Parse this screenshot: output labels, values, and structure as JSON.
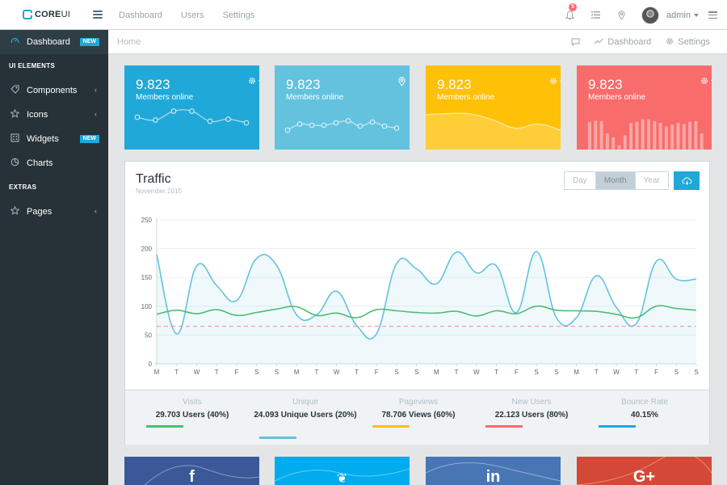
{
  "brand": {
    "name_bold": "CORE",
    "name_thin": "UI"
  },
  "header": {
    "nav": [
      "Dashboard",
      "Users",
      "Settings"
    ],
    "notifications_count": "5",
    "user_name": "admin"
  },
  "sidebar": {
    "items": [
      {
        "label": "Dashboard",
        "icon": "speedometer-icon",
        "badge": "NEW",
        "active": true
      }
    ],
    "sections": [
      {
        "title": "UI ELEMENTS",
        "items": [
          {
            "label": "Components",
            "icon": "puzzle-icon",
            "chevron": true
          },
          {
            "label": "Icons",
            "icon": "star-icon",
            "chevron": true
          },
          {
            "label": "Widgets",
            "icon": "calculator-icon",
            "badge": "NEW"
          },
          {
            "label": "Charts",
            "icon": "pie-chart-icon"
          }
        ]
      },
      {
        "title": "EXTRAS",
        "items": [
          {
            "label": "Pages",
            "icon": "star-icon",
            "chevron": true
          }
        ]
      }
    ]
  },
  "breadcrumb": {
    "home": "Home",
    "right": [
      "Dashboard",
      "Settings"
    ]
  },
  "cards": [
    {
      "value": "9.823",
      "label": "Members online",
      "color": "#20a8d8",
      "icon": "gear-icon",
      "chart": "line",
      "points": [
        72,
        65,
        87,
        87,
        62,
        67,
        58
      ]
    },
    {
      "value": "9.823",
      "label": "Members online",
      "color": "#63c2de",
      "icon": "location-icon",
      "chart": "line",
      "points": [
        40,
        55,
        52,
        52,
        58,
        63,
        50,
        60,
        50,
        45
      ]
    },
    {
      "value": "9.823",
      "label": "Members online",
      "color": "#ffc107",
      "icon": "gear-icon",
      "chart": "area",
      "points": [
        78,
        81,
        80,
        65,
        45,
        55,
        40
      ]
    },
    {
      "value": "9.823",
      "label": "Members online",
      "color": "#f86c6b",
      "icon": "gear-icon",
      "chart": "bar",
      "points": [
        78,
        81,
        80,
        45,
        34,
        12,
        40,
        75,
        78,
        85,
        85,
        80,
        75,
        65,
        70,
        75,
        72,
        78,
        80,
        45,
        55,
        60,
        65,
        70,
        75,
        80,
        80,
        85,
        90,
        95
      ]
    }
  ],
  "traffic": {
    "title": "Traffic",
    "subtitle": "November 2015",
    "ranges": [
      "Day",
      "Month",
      "Year"
    ],
    "active_range": "Month",
    "chart_data": {
      "type": "line",
      "y_ticks": [
        "0",
        "50",
        "100",
        "150",
        "200",
        "250"
      ],
      "ylim": [
        0,
        250
      ],
      "x": [
        "M",
        "T",
        "W",
        "T",
        "F",
        "S",
        "S",
        "M",
        "T",
        "W",
        "T",
        "F",
        "S",
        "S",
        "M",
        "T",
        "W",
        "T",
        "F",
        "S",
        "S",
        "M",
        "T",
        "W",
        "T",
        "F",
        "S",
        "S"
      ],
      "series": [
        {
          "role": "primary",
          "color": "#63c2de",
          "values": [
            190,
            52,
            170,
            136,
            110,
            183,
            171,
            85,
            85,
            126,
            67,
            52,
            174,
            165,
            139,
            194,
            158,
            170,
            89,
            195,
            80,
            80,
            153,
            98,
            70,
            178,
            147,
            147
          ]
        },
        {
          "role": "secondary",
          "color": "#4dbd74",
          "values": [
            86,
            93,
            87,
            94,
            84,
            89,
            95,
            99,
            84,
            88,
            80,
            94,
            92,
            89,
            88,
            91,
            83,
            92,
            87,
            100,
            93,
            92,
            91,
            86,
            80,
            100,
            96,
            93
          ]
        },
        {
          "role": "reference",
          "color": "#f86c6b",
          "values": [
            65,
            65,
            65,
            65,
            65,
            65,
            65,
            65,
            65,
            65,
            65,
            65,
            65,
            65,
            65,
            65,
            65,
            65,
            65,
            65,
            65,
            65,
            65,
            65,
            65,
            65,
            65,
            65
          ]
        }
      ]
    },
    "stats": [
      {
        "label": "Visits",
        "value": "29.703 Users (40%)",
        "color": "#4dbd74",
        "progress": 0.4
      },
      {
        "label": "Unique",
        "value": "24.093 Unique Users (20%)",
        "color": "#63c2de",
        "progress": 0.2
      },
      {
        "label": "Pageviews",
        "value": "78.706 Views (60%)",
        "color": "#ffc107",
        "progress": 0.6
      },
      {
        "label": "New Users",
        "value": "22.123 Users (80%)",
        "color": "#f86c6b",
        "progress": 0.8
      },
      {
        "label": "Bounce Rate",
        "value": "40.15%",
        "color": "#20a8d8",
        "progress": 0.4
      }
    ]
  },
  "social": [
    {
      "network": "facebook",
      "glyph": "f",
      "color": "#3b5998"
    },
    {
      "network": "twitter",
      "glyph": "❦",
      "color": "#00aced"
    },
    {
      "network": "linkedin",
      "glyph": "in",
      "color": "#4875b4"
    },
    {
      "network": "google-plus",
      "glyph": "G+",
      "color": "#d34836"
    }
  ]
}
